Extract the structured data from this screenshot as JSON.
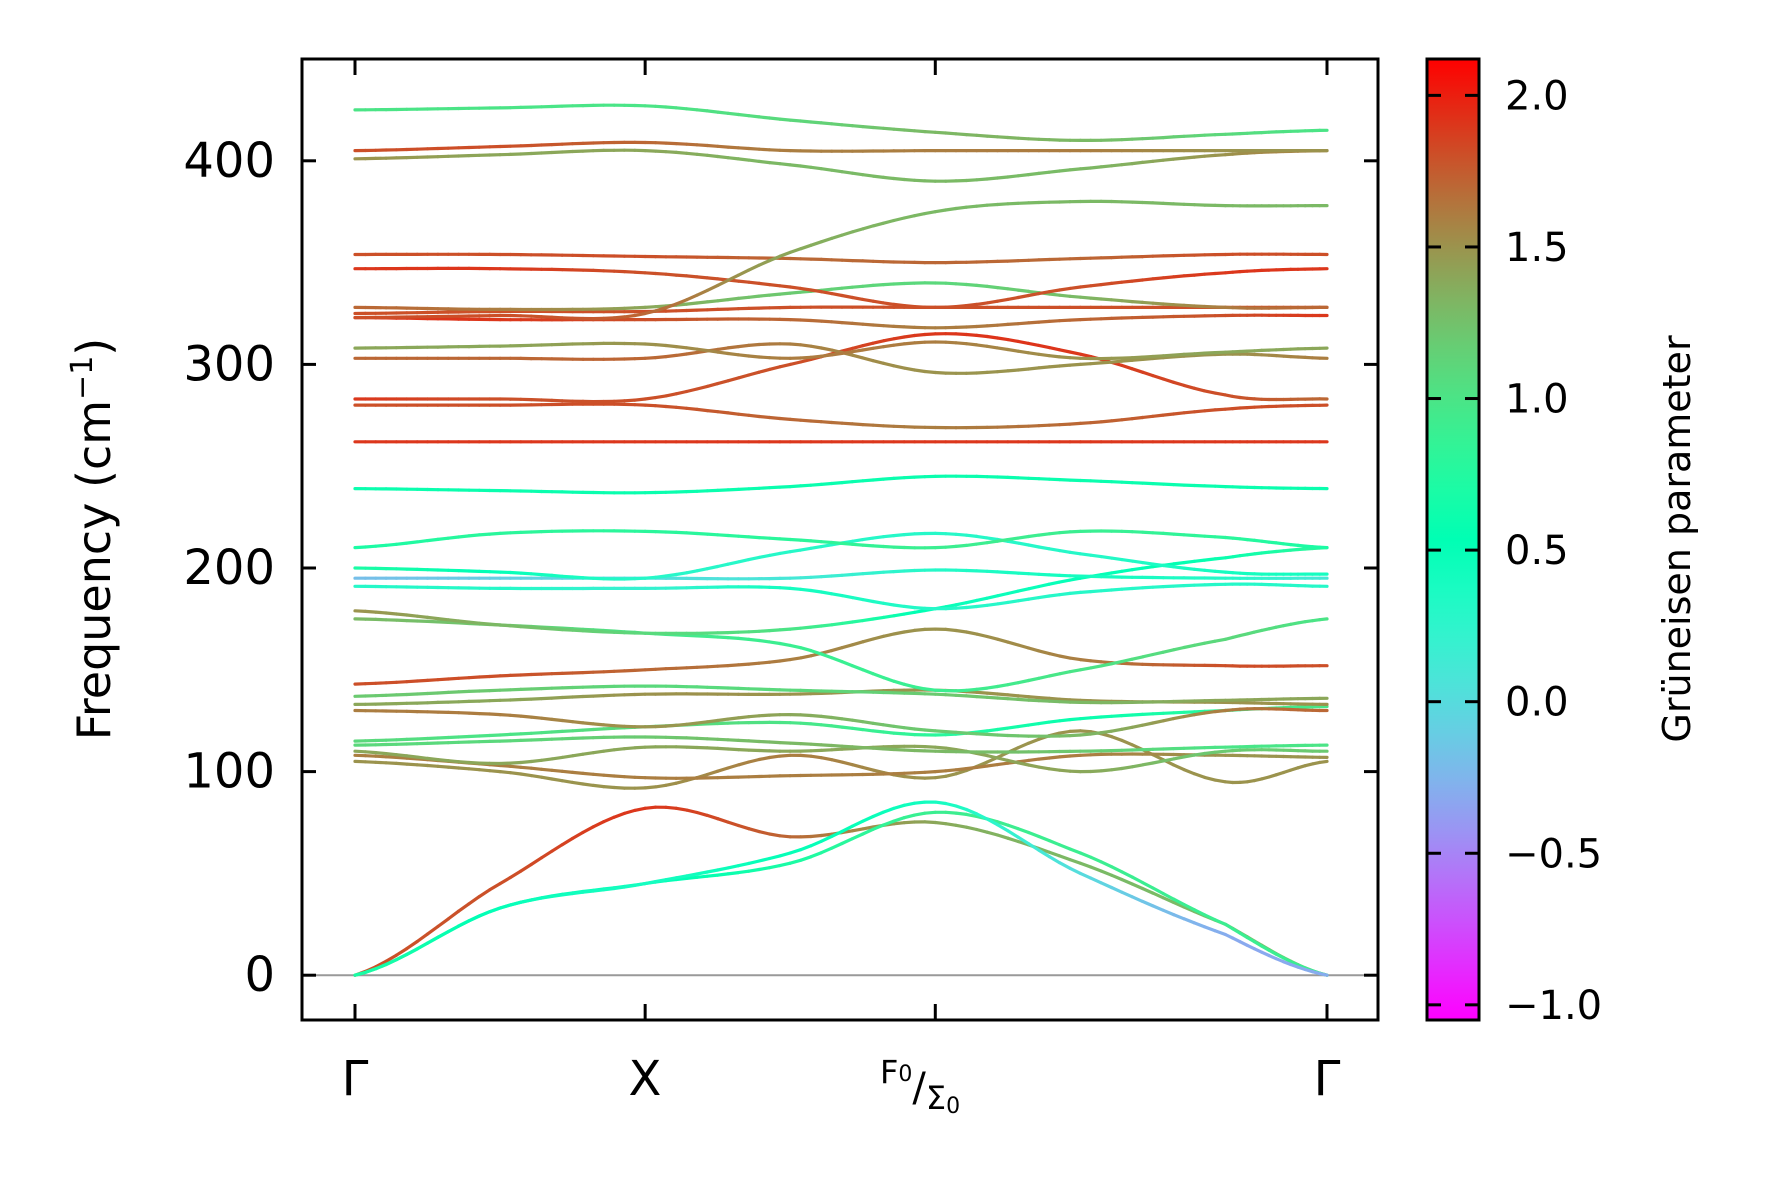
{
  "chart_data": {
    "type": "line",
    "title": "",
    "ylabel": "Frequency (cm",
    "ylabel_sup": "−1",
    "ylabel_close": ")",
    "xlabel": "",
    "ylim": [
      -22,
      450
    ],
    "yticks": [
      0,
      100,
      200,
      300,
      400
    ],
    "x_points": [
      {
        "label": "Γ",
        "pos": 0
      },
      {
        "label": "X",
        "pos": 1
      },
      {
        "label": "F",
        "sub": "0",
        "label2": "Σ",
        "sub2": "0",
        "pos": 2
      },
      {
        "label": "Γ",
        "pos": 3.35
      }
    ],
    "x_samples": [
      0,
      0.5,
      1,
      1.5,
      2,
      2.5,
      3,
      3.35
    ],
    "colorbar": {
      "label": "Grüneisen parameter",
      "range": [
        -1.05,
        2.12
      ],
      "ticks": [
        -1.0,
        -0.5,
        0.0,
        0.5,
        1.0,
        1.5,
        2.0
      ],
      "tick_labels": [
        "−1.0",
        "−0.5",
        "0.0",
        "0.5",
        "1.0",
        "1.5",
        "2.0"
      ],
      "colormap": "rainbow"
    },
    "zero_line": 0,
    "branches": [
      {
        "f": [
          0,
          45,
          82,
          68,
          75,
          55,
          25,
          0
        ],
        "g": [
          1.8,
          1.8,
          1.9,
          1.7,
          1.4,
          1.3,
          1.3,
          1.3
        ]
      },
      {
        "f": [
          0,
          33,
          45,
          55,
          80,
          60,
          25,
          0
        ],
        "g": [
          0.9,
          0.6,
          0.5,
          0.7,
          0.9,
          0.9,
          0.9,
          0.9
        ]
      },
      {
        "f": [
          0,
          33,
          45,
          60,
          85,
          50,
          20,
          0
        ],
        "g": [
          0.7,
          0.5,
          0.4,
          0.5,
          0.4,
          0,
          -0.3,
          -0.3
        ]
      },
      {
        "f": [
          105,
          100,
          92,
          108,
          97,
          120,
          95,
          105
        ],
        "g": [
          1.5,
          1.5,
          1.5,
          1.6,
          1.5,
          1.5,
          1.5,
          1.5
        ]
      },
      {
        "f": [
          108,
          103,
          97,
          98,
          100,
          108,
          108,
          107
        ],
        "g": [
          1.6,
          1.6,
          1.6,
          1.6,
          1.6,
          1.6,
          1.5,
          1.5
        ]
      },
      {
        "f": [
          110,
          104,
          112,
          110,
          112,
          100,
          110,
          110
        ],
        "g": [
          1.4,
          1.4,
          1.4,
          1.4,
          1.4,
          1.4,
          1.2,
          1.2
        ]
      },
      {
        "f": [
          113,
          115,
          117,
          114,
          110,
          110,
          112,
          113
        ],
        "g": [
          1.1,
          1.1,
          1.2,
          1.3,
          1.3,
          1.2,
          1.0,
          1.0
        ]
      },
      {
        "f": [
          115,
          118,
          122,
          124,
          118,
          126,
          130,
          132
        ],
        "g": [
          1.1,
          1.0,
          1.1,
          1.0,
          0.8,
          0.6,
          0.8,
          1.0
        ]
      },
      {
        "f": [
          130,
          128,
          122,
          128,
          120,
          118,
          130,
          130
        ],
        "g": [
          1.6,
          1.6,
          1.5,
          1.4,
          1.2,
          1.3,
          1.6,
          1.7
        ]
      },
      {
        "f": [
          133,
          135,
          138,
          138,
          140,
          135,
          134,
          133
        ],
        "g": [
          1.4,
          1.4,
          1.5,
          1.5,
          1.5,
          1.5,
          1.5,
          1.5
        ]
      },
      {
        "f": [
          137,
          140,
          142,
          140,
          138,
          134,
          135,
          136
        ],
        "g": [
          1.2,
          1.2,
          1.1,
          1.1,
          1.2,
          1.3,
          1.4,
          1.4
        ]
      },
      {
        "f": [
          143,
          147,
          150,
          155,
          170,
          155,
          152,
          152
        ],
        "g": [
          1.8,
          1.8,
          1.7,
          1.6,
          1.5,
          1.6,
          1.8,
          1.8
        ]
      },
      {
        "f": [
          175,
          172,
          168,
          162,
          140,
          150,
          165,
          175
        ],
        "g": [
          1.3,
          1.2,
          1.0,
          0.9,
          0.9,
          1.0,
          1.1,
          1.0
        ]
      },
      {
        "f": [
          179,
          172,
          168,
          170,
          180,
          195,
          205,
          210
        ],
        "g": [
          1.5,
          1.3,
          1.1,
          1.0,
          0.5,
          0.5,
          0.6,
          0.8
        ]
      },
      {
        "f": [
          191,
          190,
          190,
          190,
          180,
          188,
          192,
          191
        ],
        "g": [
          0.3,
          0.3,
          0.2,
          0.4,
          0.3,
          0.3,
          0.3,
          0.3
        ]
      },
      {
        "f": [
          195,
          195,
          195,
          195,
          199,
          196,
          195,
          195
        ],
        "g": [
          -0.2,
          -0.1,
          0.0,
          0.1,
          0.3,
          0.4,
          0.3,
          0.1
        ]
      },
      {
        "f": [
          200,
          198,
          195,
          208,
          217,
          207,
          198,
          197
        ],
        "g": [
          0.7,
          0.5,
          0.3,
          0.3,
          0.3,
          0.3,
          0.4,
          0.4
        ]
      },
      {
        "f": [
          210,
          217,
          218,
          214,
          210,
          218,
          215,
          210
        ],
        "g": [
          0.7,
          0.8,
          0.8,
          0.8,
          0.9,
          0.9,
          0.8,
          0.7
        ]
      },
      {
        "f": [
          239,
          238,
          237,
          240,
          245,
          243,
          240,
          239
        ],
        "g": [
          0.6,
          0.6,
          0.6,
          0.6,
          0.6,
          0.6,
          0.6,
          0.6
        ]
      },
      {
        "f": [
          262,
          262,
          262,
          262,
          262,
          262,
          262,
          262
        ],
        "g": [
          1.9,
          1.9,
          1.9,
          1.9,
          1.9,
          1.9,
          1.9,
          1.9
        ]
      },
      {
        "f": [
          280,
          280,
          280,
          273,
          269,
          271,
          278,
          280
        ],
        "g": [
          1.8,
          1.8,
          1.8,
          1.7,
          1.6,
          1.7,
          1.8,
          1.8
        ]
      },
      {
        "f": [
          283,
          283,
          283,
          300,
          315,
          305,
          285,
          283
        ],
        "g": [
          1.9,
          1.8,
          1.8,
          1.8,
          1.9,
          1.9,
          1.8,
          1.7
        ]
      },
      {
        "f": [
          303,
          303,
          303,
          310,
          296,
          300,
          305,
          303
        ],
        "g": [
          1.7,
          1.7,
          1.7,
          1.6,
          1.5,
          1.5,
          1.5,
          1.6
        ]
      },
      {
        "f": [
          308,
          309,
          310,
          303,
          311,
          303,
          306,
          308
        ],
        "g": [
          1.4,
          1.4,
          1.5,
          1.6,
          1.6,
          1.5,
          1.4,
          1.4
        ]
      },
      {
        "f": [
          323,
          322,
          322,
          322,
          318,
          322,
          324,
          324
        ],
        "g": [
          1.9,
          1.9,
          1.8,
          1.7,
          1.6,
          1.7,
          1.8,
          1.9
        ]
      },
      {
        "f": [
          325,
          326,
          326,
          328,
          328,
          328,
          328,
          328
        ],
        "g": [
          1.8,
          1.8,
          1.8,
          1.8,
          1.8,
          1.8,
          1.8,
          1.8
        ]
      },
      {
        "f": [
          328,
          327,
          328,
          335,
          340,
          333,
          328,
          328
        ],
        "g": [
          1.7,
          1.6,
          1.4,
          1.2,
          1.1,
          1.3,
          1.6,
          1.7
        ]
      },
      {
        "f": [
          347,
          347,
          345,
          338,
          328,
          338,
          345,
          347
        ],
        "g": [
          1.9,
          1.9,
          1.8,
          1.8,
          1.8,
          1.8,
          1.9,
          1.9
        ]
      },
      {
        "f": [
          354,
          354,
          353,
          352,
          350,
          352,
          354,
          354
        ],
        "g": [
          1.8,
          1.8,
          1.8,
          1.7,
          1.7,
          1.7,
          1.8,
          1.8
        ]
      },
      {
        "f": [
          323,
          324,
          325,
          355,
          375,
          380,
          378,
          378
        ],
        "g": [
          1.8,
          1.8,
          1.7,
          1.4,
          1.3,
          1.3,
          1.3,
          1.3
        ]
      },
      {
        "f": [
          401,
          403,
          405,
          398,
          390,
          396,
          403,
          405
        ],
        "g": [
          1.5,
          1.4,
          1.4,
          1.3,
          1.3,
          1.3,
          1.5,
          1.6
        ]
      },
      {
        "f": [
          405,
          407,
          409,
          405,
          405,
          405,
          405,
          405
        ],
        "g": [
          1.8,
          1.8,
          1.7,
          1.6,
          1.6,
          1.6,
          1.5,
          1.5
        ]
      },
      {
        "f": [
          425,
          426,
          427,
          420,
          414,
          410,
          413,
          415
        ],
        "g": [
          1.0,
          1.0,
          1.0,
          1.1,
          1.3,
          1.3,
          1.1,
          1.0
        ]
      }
    ]
  }
}
